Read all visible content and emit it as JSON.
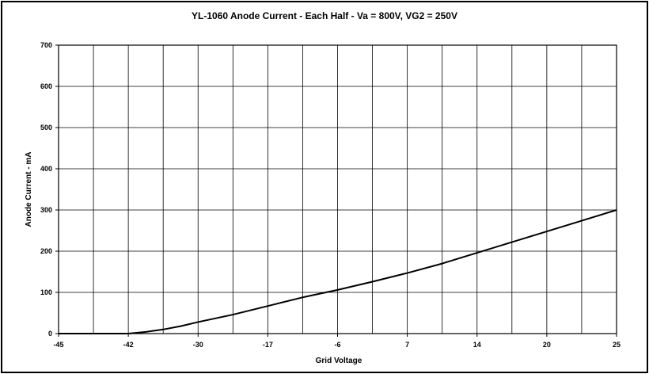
{
  "chart_data": {
    "type": "line",
    "title": "YL-1060 Anode Current - Each Half - Va = 800V, VG2 = 250V",
    "xlabel": "Grid Voltage",
    "ylabel": "Anode Current - mA",
    "x_tick_labels": [
      "-45",
      "-42",
      "-30",
      "-17",
      "-6",
      "7",
      "14",
      "20",
      "25"
    ],
    "y_ticks": [
      0,
      100,
      200,
      300,
      400,
      500,
      600,
      700
    ],
    "ylim": [
      0,
      700
    ],
    "grid": true,
    "series": [
      {
        "name": "",
        "color": "#000000",
        "x_index": [
          0,
          0.1,
          0.2,
          0.3,
          0.4,
          0.5,
          0.6,
          0.7,
          0.8,
          0.9,
          1,
          1.25,
          1.5,
          1.75,
          2,
          2.5,
          3,
          3.5,
          4,
          4.5,
          5,
          5.5,
          6,
          6.5,
          7,
          7.5,
          8
        ],
        "y": [
          0,
          0,
          0,
          0,
          0,
          0,
          0,
          0,
          0,
          0,
          0,
          4,
          10,
          18,
          28,
          46,
          67,
          88,
          106,
          126,
          147,
          170,
          196,
          222,
          248,
          274,
          300
        ],
        "note": ""
      }
    ]
  }
}
